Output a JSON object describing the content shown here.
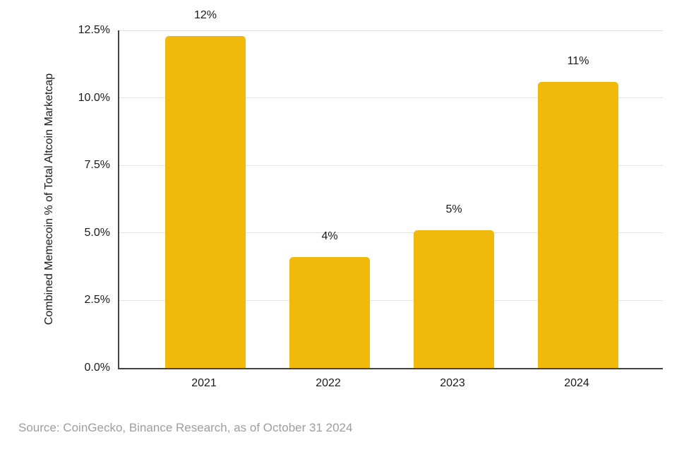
{
  "chart_data": {
    "type": "bar",
    "categories": [
      "2021",
      "2022",
      "2023",
      "2024"
    ],
    "values": [
      12.3,
      4.1,
      5.1,
      10.6
    ],
    "data_labels": [
      "12%",
      "4%",
      "5%",
      "11%"
    ],
    "ylabel": "Combined Memecoin % of Total Altcoin Marketcap",
    "xlabel": "",
    "ylim": [
      0,
      12.5
    ],
    "yticks": [
      {
        "value": 0,
        "label": "0.0%"
      },
      {
        "value": 2.5,
        "label": "2.5%"
      },
      {
        "value": 5,
        "label": "5.0%"
      },
      {
        "value": 7.5,
        "label": "7.5%"
      },
      {
        "value": 10,
        "label": "10.0%"
      },
      {
        "value": 12.5,
        "label": "12.5%"
      }
    ],
    "grid": true,
    "legend_position": "none",
    "bar_color": "#F0B90B"
  },
  "source": {
    "text": "Source: CoinGecko, Binance Research, as of October 31 2024"
  },
  "colors": {
    "bar": "#F0B90B",
    "axis_line": "#424242",
    "gridline": "#E3E3E3",
    "tick_text": "#1A1A1A",
    "source_text": "#9E9E9E",
    "background": "#FFFFFF"
  }
}
